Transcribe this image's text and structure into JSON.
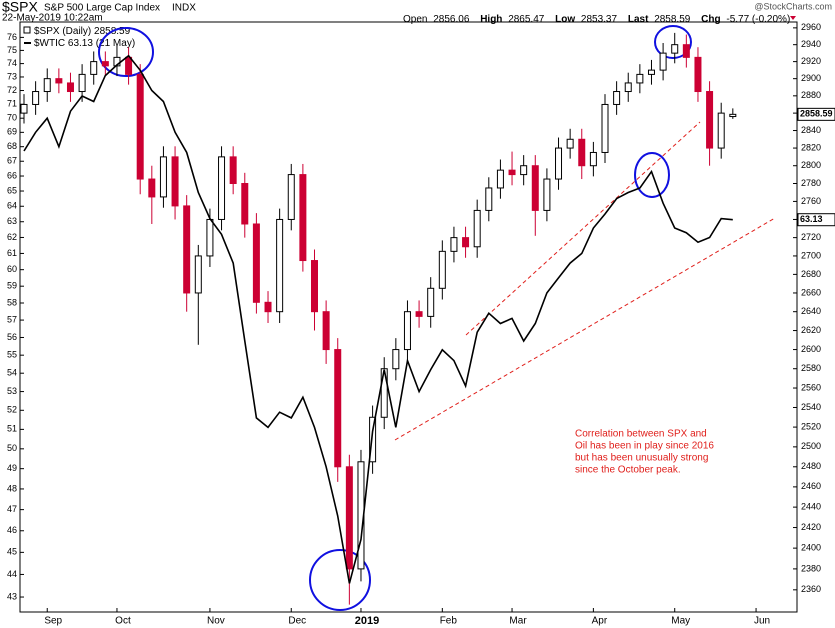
{
  "chart_data": {
    "type": "candlestick",
    "title": "$SPX",
    "subtitle": "S&P 500 Large Cap Index",
    "exchange": "INDX",
    "date": "22-May-2019 10:22am",
    "watermark": "@StockCharts.com",
    "quote_labels": [
      "Open",
      "High",
      "Low",
      "Last",
      "Chg"
    ],
    "change": "-5.77 (-0.20%)",
    "annotation": [
      "Correlation between SPX and",
      "Oil has been in play since 2016",
      "but has been unusually strong",
      "since the October peak."
    ],
    "log_scale": true,
    "categories": [
      null,
      null,
      "Sep",
      null,
      null,
      null,
      null,
      null,
      "Oct",
      null,
      null,
      null,
      null,
      null,
      null,
      null,
      "Nov",
      null,
      null,
      null,
      null,
      null,
      null,
      "Dec",
      null,
      null,
      null,
      null,
      null,
      "2019",
      null,
      null,
      null,
      null,
      null,
      null,
      "Feb",
      null,
      null,
      null,
      null,
      null,
      "Mar",
      null,
      null,
      null,
      null,
      null,
      null,
      "Apr",
      null,
      null,
      null,
      null,
      null,
      null,
      "May",
      null,
      null,
      null,
      null,
      null,
      null,
      "Jun"
    ],
    "ylim": [
      2339,
      2967
    ],
    "yticks": [
      2360,
      2380,
      2400,
      2420,
      2440,
      2460,
      2480,
      2500,
      2520,
      2540,
      2560,
      2580,
      2600,
      2620,
      2640,
      2660,
      2680,
      2700,
      2720,
      2740,
      2760,
      2780,
      2800,
      2820,
      2840,
      2860,
      2880,
      2900,
      2920,
      2940,
      2960
    ],
    "y2lim": [
      42.35,
      77.2
    ],
    "y2ticks": [
      43,
      44,
      45,
      46,
      47,
      48,
      49,
      50,
      51,
      52,
      53,
      54,
      55,
      56,
      57,
      58,
      59,
      60,
      61,
      62,
      63,
      64,
      65,
      66,
      67,
      68,
      69,
      70,
      71,
      72,
      73,
      74,
      75,
      76
    ],
    "series": [
      {
        "name": "$SPX (Daily)",
        "type": "candlestick",
        "up_color": "#000000",
        "down_color": "#cc0033",
        "open": [
          2860,
          2870,
          2885,
          2900,
          2895,
          2885,
          2905,
          2920,
          2915,
          2925,
          2905,
          2785,
          2765,
          2810,
          2755,
          2660,
          2700,
          2740,
          2810,
          2780,
          2735,
          2650,
          2640,
          2740,
          2790,
          2695,
          2640,
          2600,
          2480,
          2380,
          2485,
          2530,
          2580,
          2600,
          2640,
          2635,
          2665,
          2705,
          2720,
          2710,
          2750,
          2775,
          2795,
          2790,
          2800,
          2750,
          2785,
          2820,
          2830,
          2800,
          2815,
          2870,
          2885,
          2895,
          2905,
          2910,
          2930,
          2940,
          2925,
          2885,
          2820,
          2856.06,
          null,
          null
        ],
        "high": [
          2882,
          2897,
          2912,
          2912,
          2907,
          2917,
          2932,
          2932,
          2940,
          2937,
          2917,
          2800,
          2822,
          2822,
          2767,
          2712,
          2752,
          2822,
          2822,
          2792,
          2747,
          2662,
          2752,
          2802,
          2802,
          2707,
          2652,
          2612,
          2492,
          2497,
          2542,
          2592,
          2612,
          2652,
          2652,
          2677,
          2717,
          2732,
          2732,
          2762,
          2787,
          2807,
          2816,
          2812,
          2812,
          2797,
          2832,
          2842,
          2842,
          2827,
          2882,
          2897,
          2907,
          2917,
          2922,
          2942,
          2954,
          2952,
          2937,
          2897,
          2872,
          2865.47,
          null,
          null
        ],
        "low": [
          2848,
          2858,
          2873,
          2883,
          2873,
          2873,
          2893,
          2903,
          2903,
          2893,
          2768,
          2735,
          2753,
          2740,
          2640,
          2605,
          2688,
          2728,
          2768,
          2720,
          2638,
          2628,
          2628,
          2728,
          2683,
          2620,
          2585,
          2465,
          2346,
          2368,
          2473,
          2518,
          2568,
          2588,
          2623,
          2623,
          2653,
          2693,
          2698,
          2698,
          2738,
          2763,
          2778,
          2778,
          2722,
          2738,
          2773,
          2808,
          2785,
          2788,
          2803,
          2858,
          2873,
          2883,
          2893,
          2898,
          2918,
          2913,
          2873,
          2800,
          2808,
          2853.37,
          null,
          null
        ],
        "close": [
          2870,
          2885,
          2900,
          2895,
          2885,
          2905,
          2920,
          2915,
          2925,
          2905,
          2785,
          2765,
          2810,
          2755,
          2660,
          2700,
          2740,
          2810,
          2780,
          2735,
          2650,
          2640,
          2740,
          2790,
          2695,
          2640,
          2600,
          2480,
          2380,
          2485,
          2530,
          2580,
          2600,
          2640,
          2635,
          2665,
          2705,
          2720,
          2710,
          2750,
          2775,
          2795,
          2790,
          2800,
          2750,
          2785,
          2820,
          2830,
          2800,
          2815,
          2870,
          2885,
          2895,
          2905,
          2910,
          2930,
          2940,
          2925,
          2885,
          2820,
          2860,
          2858.59,
          null,
          null
        ]
      },
      {
        "name": "$WTIC",
        "date_label": "(21 May)",
        "type": "line",
        "axis": "y2",
        "color": "#000000",
        "values": [
          67.7,
          69.0,
          70.0,
          68.0,
          70.5,
          71.6,
          71.2,
          73.1,
          73.9,
          74.6,
          73.5,
          72.0,
          71.2,
          69.0,
          67.6,
          64.9,
          63.2,
          62.2,
          60.4,
          55.8,
          51.6,
          51.1,
          51.9,
          51.6,
          52.7,
          51.1,
          49.1,
          46.7,
          43.6,
          45.6,
          50.9,
          54.2,
          51.1,
          54.7,
          53.0,
          54.2,
          55.3,
          54.7,
          53.3,
          56.3,
          57.4,
          56.8,
          57.1,
          55.8,
          56.8,
          58.6,
          59.5,
          60.4,
          61.0,
          62.6,
          63.5,
          64.5,
          64.9,
          65.2,
          66.3,
          64.2,
          62.6,
          62.3,
          61.7,
          62.0,
          63.2,
          63.13,
          null,
          null
        ]
      }
    ]
  }
}
